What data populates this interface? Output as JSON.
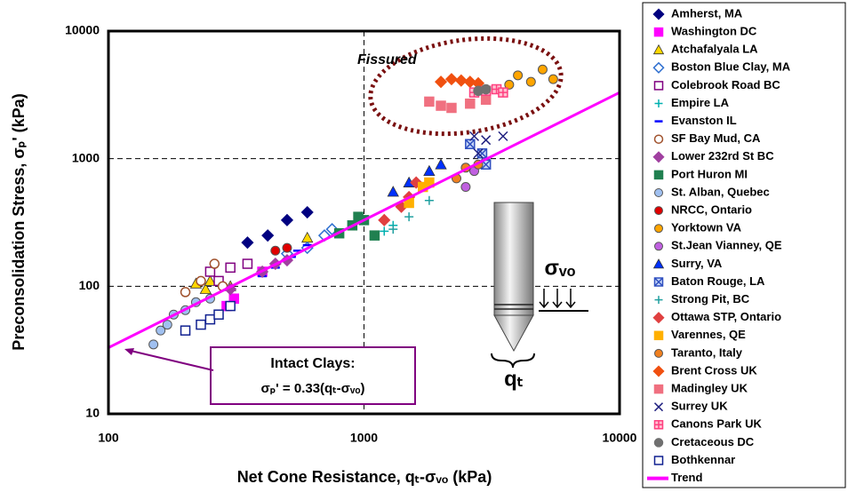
{
  "chart_data": {
    "type": "scatter",
    "x_label": "Net Cone Resistance, qₜ-σᵥₒ  (kPa)",
    "y_label": "Preconsolidation Stress, σₚ' (kPa)",
    "annotations": [
      "Fissured",
      "Intact Clays:",
      "σₚ' = 0.33(qₜ-σᵥₒ)",
      "σᵥₒ",
      "qₜ"
    ],
    "log_x": true,
    "log_y": true,
    "grid": true,
    "legend": "right",
    "xlim": [
      100,
      10000
    ],
    "xticks": [
      100,
      1000,
      10000
    ],
    "ylim": [
      10,
      10000
    ],
    "yticks": [
      10,
      100,
      1000,
      10000
    ],
    "series": [
      {
        "name": "Amherst, MA",
        "color": "#000080",
        "marker": "diamond",
        "filled": true,
        "x": [
          350,
          420,
          500,
          600
        ],
        "values": [
          220,
          250,
          330,
          380
        ]
      },
      {
        "name": "Washington DC",
        "color": "#ff00ff",
        "marker": "square",
        "filled": true,
        "x": [
          290,
          310,
          400
        ],
        "values": [
          70,
          80,
          130
        ]
      },
      {
        "name": "Atchafalyala LA",
        "color": "#ffd700",
        "marker": "triangle",
        "filled": true,
        "x": [
          220,
          240,
          300,
          250,
          600
        ],
        "values": [
          105,
          95,
          100,
          110,
          240
        ]
      },
      {
        "name": "Boston Blue Clay, MA",
        "color": "#3070d0",
        "marker": "diamond",
        "filled": false,
        "x": [
          500,
          600,
          700,
          750
        ],
        "values": [
          180,
          200,
          250,
          280
        ]
      },
      {
        "name": "Colebrook Road BC",
        "color": "#800080",
        "marker": "square",
        "filled": false,
        "x": [
          250,
          270,
          300,
          350
        ],
        "values": [
          130,
          110,
          140,
          150
        ]
      },
      {
        "name": "Empire LA",
        "color": "#00b0b0",
        "marker": "plus",
        "filled": true,
        "x": [
          1100,
          1200,
          1300
        ],
        "values": [
          250,
          270,
          300
        ]
      },
      {
        "name": "Evanston IL",
        "color": "#0000ff",
        "marker": "dash",
        "filled": true,
        "x": [
          400,
          450,
          520,
          550,
          600
        ],
        "values": [
          120,
          140,
          170,
          190,
          210
        ]
      },
      {
        "name": "SF Bay Mud, CA",
        "color": "#a0522d",
        "marker": "circle",
        "filled": false,
        "x": [
          200,
          230,
          260,
          280
        ],
        "values": [
          90,
          110,
          150,
          100
        ]
      },
      {
        "name": "Lower 232rd St BC",
        "color": "#a040a0",
        "marker": "diamond",
        "filled": true,
        "x": [
          400,
          450,
          500,
          300
        ],
        "values": [
          130,
          150,
          160,
          95
        ]
      },
      {
        "name": "Port Huron MI",
        "color": "#208050",
        "marker": "square",
        "filled": true,
        "x": [
          800,
          900,
          950,
          1000,
          1100
        ],
        "values": [
          260,
          300,
          350,
          330,
          250
        ]
      },
      {
        "name": "St. Alban, Quebec",
        "color": "#a0c0f0",
        "marker": "circle",
        "filled": true,
        "x": [
          150,
          160,
          170,
          180,
          200,
          220,
          250
        ],
        "values": [
          35,
          45,
          50,
          60,
          65,
          75,
          80
        ]
      },
      {
        "name": "NRCC, Ontario",
        "color": "#e00000",
        "marker": "circle",
        "filled": true,
        "x": [
          450,
          500
        ],
        "values": [
          190,
          200
        ]
      },
      {
        "name": "Yorktown VA",
        "color": "#ffa500",
        "marker": "circle",
        "filled": true,
        "x": [
          4000,
          4500,
          5000,
          5500,
          3700
        ],
        "values": [
          4500,
          4000,
          5000,
          4200,
          3800
        ]
      },
      {
        "name": "St.Jean Vianney, QE",
        "color": "#c060e0",
        "marker": "circle",
        "filled": true,
        "x": [
          2500,
          2700,
          3000
        ],
        "values": [
          600,
          800,
          950
        ]
      },
      {
        "name": "Surry, VA",
        "color": "#0030ff",
        "marker": "triangle",
        "filled": true,
        "x": [
          1500,
          1800,
          2000,
          1300
        ],
        "values": [
          650,
          800,
          900,
          550
        ]
      },
      {
        "name": "Baton Rouge, LA",
        "color": "#3050c0",
        "marker": "xbox",
        "filled": true,
        "x": [
          2600,
          2900,
          3000
        ],
        "values": [
          1300,
          1100,
          900
        ]
      },
      {
        "name": "Strong Pit, BC",
        "color": "#20a0a0",
        "marker": "plus",
        "filled": false,
        "x": [
          1300,
          1500,
          1800
        ],
        "values": [
          280,
          350,
          470
        ]
      },
      {
        "name": "Ottawa STP, Ontario",
        "color": "#e04040",
        "marker": "diamond",
        "filled": true,
        "x": [
          1200,
          1400,
          1500,
          1600
        ],
        "values": [
          330,
          420,
          500,
          650
        ]
      },
      {
        "name": "Varennes, QE",
        "color": "#ffb000",
        "marker": "square",
        "filled": true,
        "x": [
          1500,
          1700,
          1800
        ],
        "values": [
          450,
          600,
          650
        ]
      },
      {
        "name": "Taranto, Italy",
        "color": "#f08020",
        "marker": "circle",
        "filled": true,
        "x": [
          2300,
          2500,
          2800
        ],
        "values": [
          700,
          850,
          900
        ]
      },
      {
        "name": "Brent Cross UK",
        "color": "#f05010",
        "marker": "diamond",
        "filled": true,
        "x": [
          2000,
          2200,
          2400,
          2600,
          2800
        ],
        "values": [
          4000,
          4200,
          4100,
          4000,
          3900
        ]
      },
      {
        "name": "Madingley UK",
        "color": "#f07080",
        "marker": "square",
        "filled": true,
        "x": [
          1800,
          2000,
          2200,
          2600,
          3000
        ],
        "values": [
          2800,
          2600,
          2500,
          2700,
          2900
        ]
      },
      {
        "name": "Surrey UK",
        "color": "#202080",
        "marker": "x",
        "filled": true,
        "x": [
          2700,
          3000,
          3500,
          2800
        ],
        "values": [
          1500,
          1400,
          1500,
          1100
        ]
      },
      {
        "name": "Canons Park UK",
        "color": "#ff4080",
        "marker": "plusbox",
        "filled": true,
        "x": [
          2700,
          3000,
          3300,
          3500
        ],
        "values": [
          3300,
          3400,
          3500,
          3300
        ]
      },
      {
        "name": "Cretaceous DC",
        "color": "#707070",
        "marker": "circle",
        "filled": true,
        "x": [
          2800,
          3000
        ],
        "values": [
          3400,
          3500
        ]
      },
      {
        "name": "Bothkennar",
        "color": "#102090",
        "marker": "square",
        "filled": false,
        "x": [
          200,
          230,
          250,
          270,
          300
        ],
        "values": [
          45,
          50,
          55,
          60,
          70
        ]
      },
      {
        "name": "Trend",
        "color": "#ff00ff",
        "marker": "line",
        "filled": true,
        "x": [
          100,
          10000
        ],
        "values": [
          33,
          3300
        ]
      }
    ]
  }
}
